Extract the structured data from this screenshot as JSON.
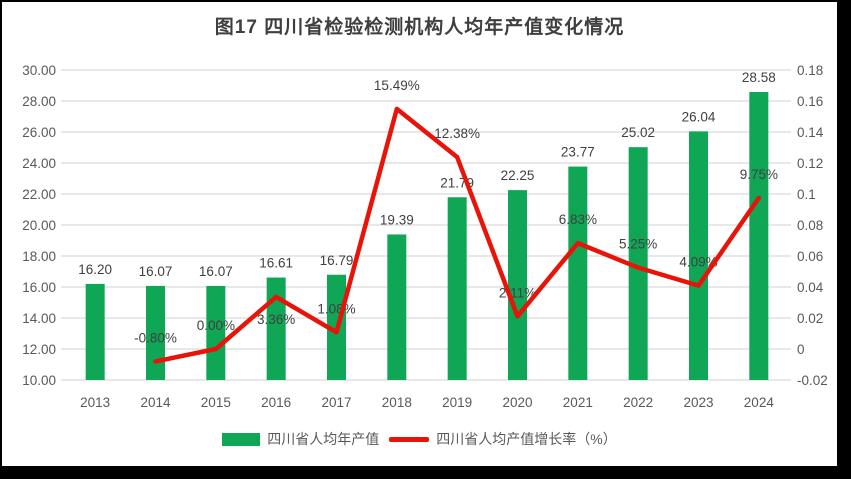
{
  "title": "图17  四川省检验检测机构人均年产值变化情况",
  "legend": {
    "items": [
      {
        "label": "四川省人均年产值",
        "swatch": "bar"
      },
      {
        "label": "四川省人均产值增长率（%）",
        "swatch": "line"
      }
    ]
  },
  "colors": {
    "bar": "#0FA656",
    "line": "#E81309",
    "grid": "#D9D9D9",
    "axis_text": "#595959",
    "data_label_text": "#404040",
    "title_text": "#3F3F3F",
    "legend_text": "#595959",
    "card_bg": "#FFFFFF",
    "frame": "#000000"
  },
  "chart_data": {
    "type": "bar",
    "subtype": "bar+line combo, dual axis",
    "title": "图17 四川省检验检测机构人均年产值变化情况",
    "categories": [
      "2013",
      "2014",
      "2015",
      "2016",
      "2017",
      "2018",
      "2019",
      "2020",
      "2021",
      "2022",
      "2023",
      "2024"
    ],
    "series": [
      {
        "name": "四川省人均年产值",
        "chart": "bar",
        "axis": "left",
        "values": [
          16.2,
          16.07,
          16.07,
          16.61,
          16.79,
          19.39,
          21.79,
          22.25,
          23.77,
          25.02,
          26.04,
          28.58
        ],
        "labels": [
          "16.20",
          "16.07",
          "16.07",
          "16.61",
          "16.79",
          "19.39",
          "21.79",
          "22.25",
          "23.77",
          "25.02",
          "26.04",
          "28.58"
        ]
      },
      {
        "name": "四川省人均产值增长率（%）",
        "chart": "line",
        "axis": "right",
        "values": [
          null,
          -0.008,
          0.0,
          0.0336,
          0.0108,
          0.1549,
          0.1238,
          0.0211,
          0.0683,
          0.0525,
          0.0409,
          0.0975
        ],
        "labels": [
          null,
          "-0.80%",
          "0.00%",
          "3.36%",
          "1.08%",
          "15.49%",
          "12.38%",
          "2.11%",
          "6.83%",
          "5.25%",
          "4.09%",
          "9.75%"
        ],
        "label_side": [
          null,
          "above",
          "above",
          "below",
          "above",
          "above",
          "above",
          "above",
          "above",
          "above",
          "above",
          "above"
        ]
      }
    ],
    "left_axis": {
      "min": 10,
      "max": 30,
      "tick_labels": [
        "30.00",
        "28.00",
        "26.00",
        "24.00",
        "22.00",
        "20.00",
        "18.00",
        "16.00",
        "14.00",
        "12.00",
        "10.00"
      ]
    },
    "right_axis": {
      "min": -0.02,
      "max": 0.18,
      "tick_labels": [
        "0.18",
        "0.16",
        "0.14",
        "0.12",
        "0.1",
        "0.08",
        "0.06",
        "0.04",
        "0.02",
        "0",
        "-0.02"
      ]
    },
    "grid": "horizontal",
    "legend_position": "bottom"
  }
}
